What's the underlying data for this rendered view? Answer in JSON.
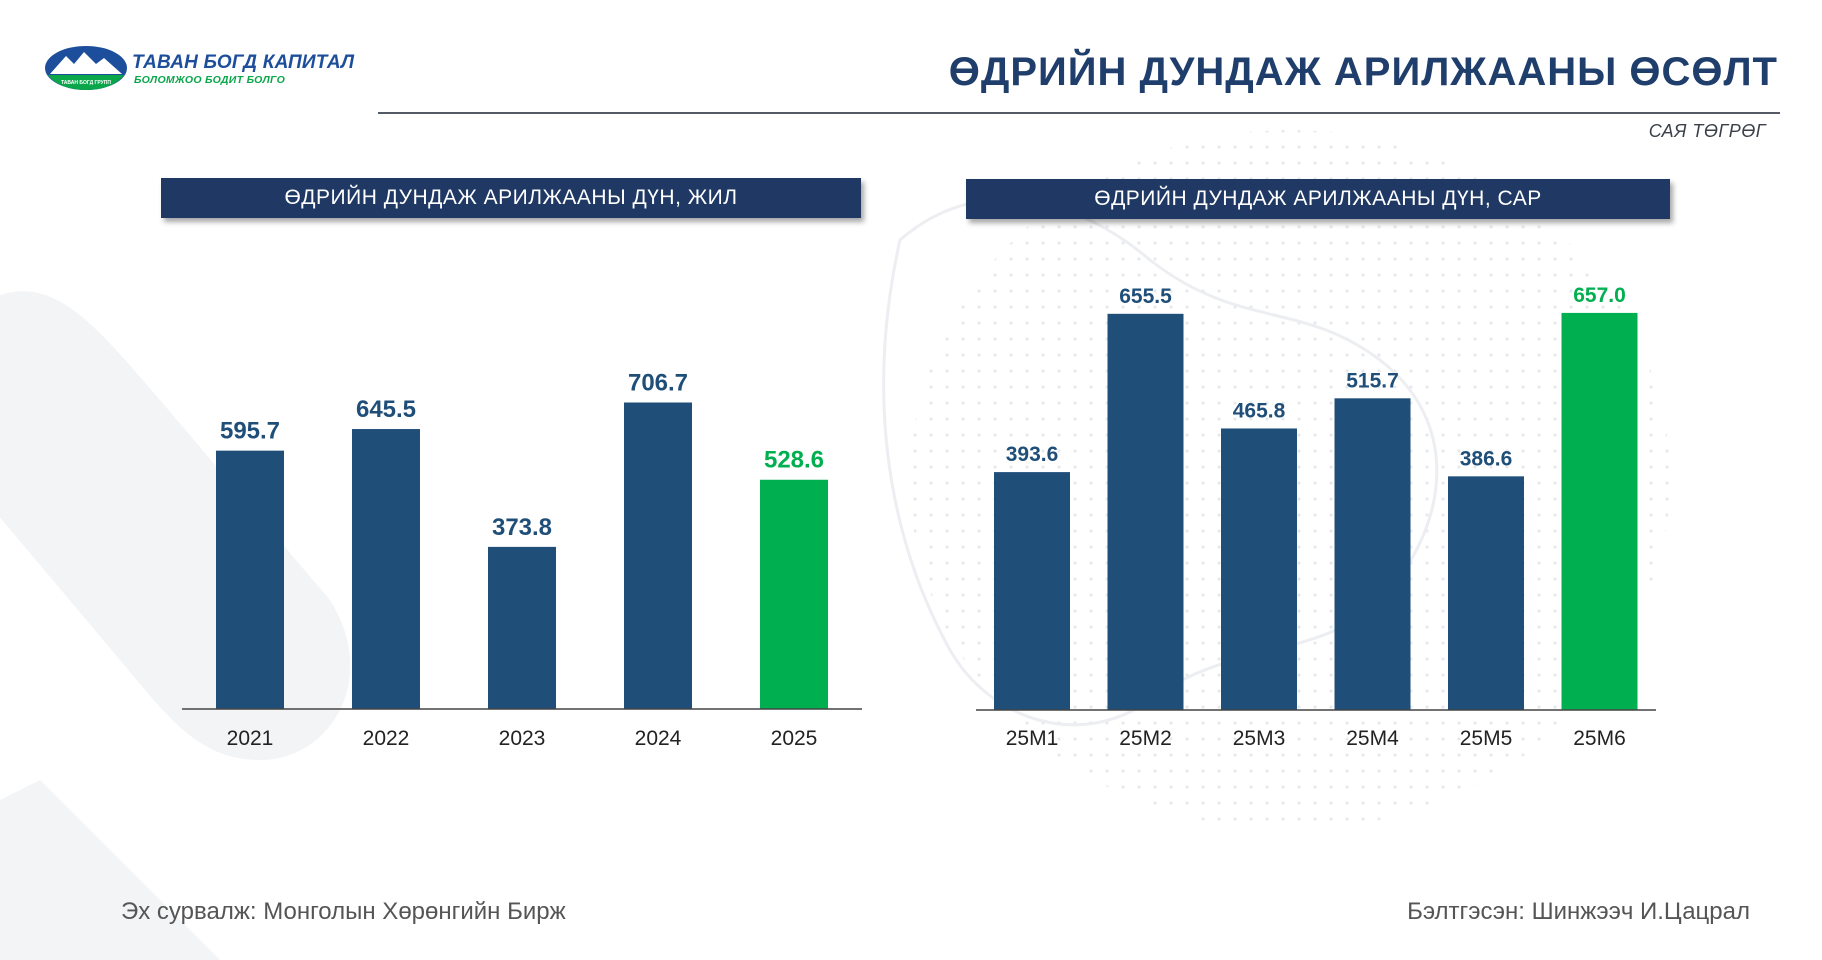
{
  "logo": {
    "name": "ТАВАН БОГД КАПИТАЛ",
    "tagline": "БОЛОМЖОО БОДИТ БОЛГО",
    "mark_text": "ТАВАН БОГД ГРУПП",
    "icon": "mountain-logo-icon"
  },
  "page": {
    "title": "ӨДРИЙН ДУНДАЖ АРИЛЖААНЫ ӨСӨЛТ",
    "unit": "САЯ ТӨГРӨГ"
  },
  "colors": {
    "navy": "#1f4e79",
    "green": "#00b050",
    "header_bg": "#1f3864"
  },
  "chart_data": [
    {
      "type": "bar",
      "title": "ӨДРИЙН ДУНДАЖ АРИЛЖААНЫ ДҮН, ЖИЛ",
      "categories": [
        "2021",
        "2022",
        "2023",
        "2024",
        "2025"
      ],
      "values": [
        595.7,
        645.5,
        373.8,
        706.7,
        528.6
      ],
      "value_labels": [
        "595.7",
        "645.5",
        "373.8",
        "706.7",
        "528.6"
      ],
      "bar_colors": [
        "#1f4e79",
        "#1f4e79",
        "#1f4e79",
        "#1f4e79",
        "#00b050"
      ],
      "highlight_index": 4,
      "ylim": [
        0,
        800
      ],
      "grid": false,
      "xlabel": "",
      "ylabel": ""
    },
    {
      "type": "bar",
      "title": "ӨДРИЙН ДУНДАЖ АРИЛЖААНЫ ДҮН, САР",
      "categories": [
        "25M1",
        "25M2",
        "25M3",
        "25M4",
        "25M5",
        "25M6"
      ],
      "values": [
        393.6,
        655.5,
        465.8,
        515.7,
        386.6,
        657.0
      ],
      "value_labels": [
        "393.6",
        "655.5",
        "465.8",
        "515.7",
        "386.6",
        "657.0"
      ],
      "bar_colors": [
        "#1f4e79",
        "#1f4e79",
        "#1f4e79",
        "#1f4e79",
        "#1f4e79",
        "#00b050"
      ],
      "highlight_index": 5,
      "ylim": [
        0,
        700
      ],
      "grid": false,
      "xlabel": "",
      "ylabel": ""
    }
  ],
  "footer": {
    "source": "Эх сурвалж: Монголын Хөрөнгийн Бирж",
    "prepared_by": "Бэлтгэсэн: Шинжээч И.Цацрал"
  }
}
